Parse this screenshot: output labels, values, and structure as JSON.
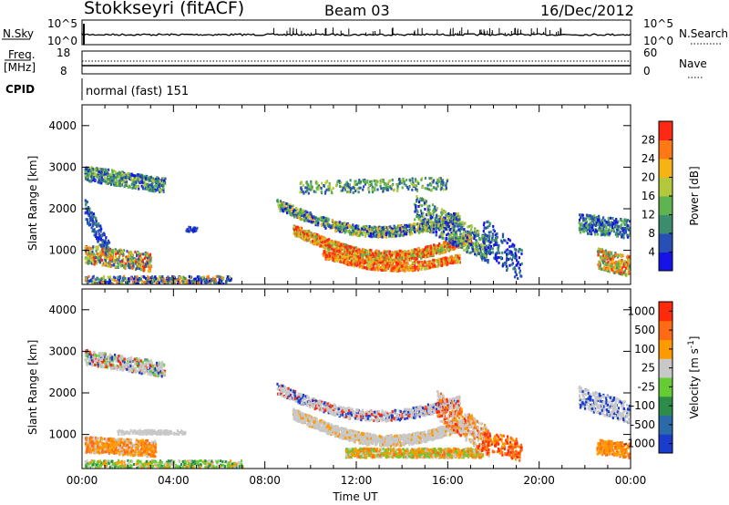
{
  "header": {
    "site": "Stokkseyri (fitACF)",
    "beam": "Beam 03",
    "date": "16/Dec/2012"
  },
  "status_panel": {
    "nsky_label": "N.Sky",
    "nsky_ticks": [
      "10^5",
      "10^0"
    ],
    "nsearch_label": "N.Search",
    "nsearch_ticks": [
      "10^5",
      "10^0"
    ],
    "freq_label_1": "Freq.",
    "freq_label_2": "[MHz]",
    "freq_ticks": [
      "18",
      "8"
    ],
    "nave_label": "Nave",
    "nave_ticks": [
      "60",
      "0"
    ],
    "cpid_label": "CPID",
    "cpid_value": "normal (fast) 151"
  },
  "chart_data": [
    {
      "type": "heatmap",
      "quantity": "Power",
      "ylabel": "Slant Range [km]",
      "ylim": [
        180,
        4500
      ],
      "yticks": [
        1000,
        2000,
        3000,
        4000
      ],
      "xlim": [
        0,
        24
      ],
      "colorbar": {
        "label": "Power [dB]",
        "ticks": [
          "4",
          "8",
          "12",
          "16",
          "20",
          "24",
          "28"
        ],
        "colors": [
          "#1414e6",
          "#2850b4",
          "#3c8c6e",
          "#5fb450",
          "#b4c83c",
          "#f5b414",
          "#ff7814",
          "#ff2814"
        ]
      }
    },
    {
      "type": "heatmap",
      "quantity": "Velocity",
      "ylabel": "Slant Range [km]",
      "ylim": [
        180,
        4500
      ],
      "yticks": [
        1000,
        2000,
        3000,
        4000
      ],
      "xlim": [
        0,
        24
      ],
      "xlabel": "Time UT",
      "xticks": [
        "00:00",
        "04:00",
        "08:00",
        "12:00",
        "16:00",
        "20:00",
        "00:00"
      ],
      "colorbar": {
        "label": "Velocity [m s",
        "label_sup": "-1",
        "label_end": "]",
        "ticks": [
          "1000",
          "500",
          "100",
          "25",
          "-25",
          "-100",
          "-500",
          "-1000"
        ],
        "colors": [
          "#1a3ccc",
          "#2a6aa8",
          "#2e8c4a",
          "#66cc33",
          "#c8c8c8",
          "#ff9900",
          "#ff6a14",
          "#ff2a0a"
        ]
      }
    }
  ]
}
